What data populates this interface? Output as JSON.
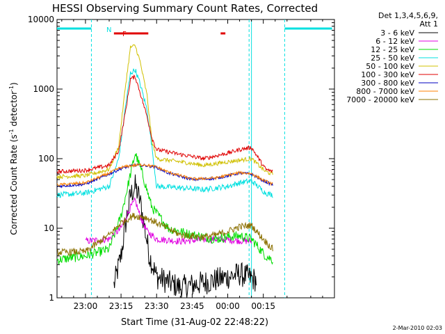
{
  "chart_data": {
    "type": "line",
    "title": "HESSI Observing Summary Count Rates, Corrected",
    "xlabel": "Start Time (31-Aug-02 22:48:22)",
    "ylabel_main": "Corrected Count Rate (s",
    "ylabel_sup1": "-1",
    "ylabel_mid": " detector",
    "ylabel_sup2": "-1",
    "ylabel_end": ")",
    "yscale": "log",
    "xlim_min": [
      -12,
      105
    ],
    "ylim": [
      1,
      10000
    ],
    "x_ticks": [
      {
        "v": 0,
        "label": "23:00"
      },
      {
        "v": 15,
        "label": "23:15"
      },
      {
        "v": 30,
        "label": "23:30"
      },
      {
        "v": 45,
        "label": "23:45"
      },
      {
        "v": 60,
        "label": "00:00"
      },
      {
        "v": 75,
        "label": "00:15"
      }
    ],
    "y_ticks": [
      {
        "v": 1,
        "label": "1"
      },
      {
        "v": 10,
        "label": "10"
      },
      {
        "v": 100,
        "label": "100"
      },
      {
        "v": 1000,
        "label": "1000"
      },
      {
        "v": 10000,
        "label": "10000"
      }
    ],
    "legend_header_line1": "Det 1,3,4,5,6,9,",
    "legend_header_line2": "Att 1",
    "legend_position": "right",
    "night_marker": "N",
    "flare_marker": "F",
    "date_stamp": "2-Mar-2010 02:03",
    "night_bars": [
      [
        -12,
        2.5
      ],
      [
        84,
        104
      ]
    ],
    "flare_bars": [
      [
        12,
        26.5
      ],
      [
        57,
        59
      ]
    ],
    "vlines_dashed": [
      2.5,
      69,
      84
    ],
    "vlines_solid": [
      70
    ],
    "series": [
      {
        "name": "3 - 6 keV",
        "color": "#000000",
        "noise": 0.18,
        "x": [
          12,
          15,
          17,
          19,
          21,
          23,
          25,
          27,
          30,
          40,
          55,
          65,
          72
        ],
        "y": [
          1.5,
          4,
          12,
          30,
          40,
          25,
          10,
          4,
          2,
          1.4,
          1.8,
          2.2,
          1.8
        ]
      },
      {
        "name": "6 - 12 keV",
        "color": "#e000e0",
        "noise": 0.05,
        "x": [
          0,
          10,
          15,
          19,
          21,
          23,
          26,
          30,
          40,
          55,
          60,
          65,
          70
        ],
        "y": [
          6.5,
          7,
          10,
          20,
          25,
          15,
          9,
          7,
          6.5,
          7,
          6.8,
          6.6,
          6.5
        ]
      },
      {
        "name": "12 - 25 keV",
        "color": "#00dd00",
        "noise": 0.07,
        "x": [
          -12,
          0,
          10,
          15,
          19,
          21,
          24,
          28,
          35,
          45,
          55,
          60,
          65,
          70,
          76,
          79
        ],
        "y": [
          3.5,
          4,
          5,
          15,
          60,
          120,
          60,
          20,
          10,
          8,
          7,
          7.5,
          7.8,
          7,
          4,
          3.5
        ]
      },
      {
        "name": "25 - 50 keV",
        "color": "#00e0e0",
        "noise": 0.04,
        "x": [
          -12,
          0,
          10,
          14,
          17,
          19,
          21,
          23,
          26,
          28,
          30,
          40,
          50,
          60,
          65,
          70,
          76,
          79
        ],
        "y": [
          30,
          32,
          40,
          100,
          600,
          1700,
          1900,
          1200,
          500,
          150,
          40,
          38,
          36,
          40,
          45,
          48,
          32,
          30
        ]
      },
      {
        "name": "50 - 100 keV",
        "color": "#d0c000",
        "noise": 0.03,
        "x": [
          -12,
          0,
          10,
          14,
          17,
          19,
          21,
          23,
          26,
          28,
          30,
          40,
          50,
          60,
          65,
          70,
          76,
          79
        ],
        "y": [
          55,
          57,
          70,
          150,
          1200,
          4000,
          4200,
          2500,
          800,
          180,
          100,
          90,
          80,
          90,
          95,
          100,
          65,
          60
        ]
      },
      {
        "name": "100 - 300 keV",
        "color": "#e00000",
        "noise": 0.03,
        "x": [
          -12,
          0,
          10,
          14,
          17,
          19,
          21,
          23,
          26,
          28,
          30,
          40,
          50,
          60,
          65,
          70,
          76,
          79
        ],
        "y": [
          65,
          68,
          80,
          130,
          500,
          1400,
          1500,
          900,
          400,
          200,
          135,
          115,
          100,
          120,
          135,
          145,
          70,
          65
        ]
      },
      {
        "name": "300 - 800 keV",
        "color": "#0000c0",
        "noise": 0.02,
        "x": [
          -12,
          0,
          10,
          15,
          20,
          25,
          30,
          35,
          45,
          55,
          65,
          70,
          75,
          79
        ],
        "y": [
          40,
          43,
          60,
          72,
          80,
          80,
          75,
          62,
          50,
          52,
          62,
          60,
          48,
          42
        ]
      },
      {
        "name": "800 - 7000 keV",
        "color": "#ff8000",
        "noise": 0.02,
        "x": [
          -12,
          0,
          10,
          15,
          20,
          25,
          30,
          35,
          45,
          55,
          65,
          70,
          75,
          79
        ],
        "y": [
          42,
          45,
          62,
          75,
          80,
          82,
          76,
          64,
          51,
          53,
          63,
          61,
          49,
          43
        ]
      },
      {
        "name": "7000 - 20000 keV",
        "color": "#8b7000",
        "noise": 0.05,
        "x": [
          -12,
          0,
          10,
          15,
          20,
          25,
          30,
          40,
          50,
          55,
          60,
          65,
          70,
          75,
          79
        ],
        "y": [
          4.5,
          4.6,
          8,
          12,
          15,
          14.5,
          12,
          8,
          7.5,
          8,
          9,
          10.5,
          11,
          7,
          5
        ]
      }
    ]
  }
}
